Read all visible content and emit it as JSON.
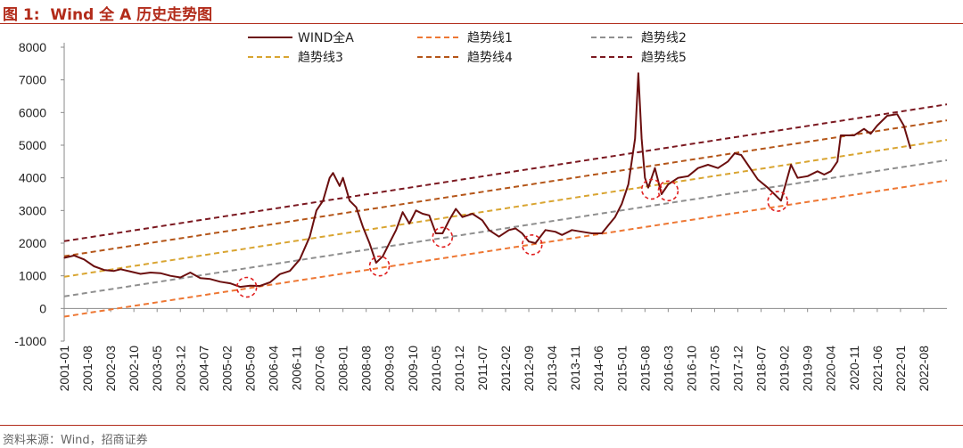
{
  "figure_label": "图 1:",
  "figure_title": "Wind 全 A 历史走势图",
  "source_text": "资料来源：Wind，招商证券",
  "chart_data": {
    "type": "line",
    "title": "Wind 全 A 历史走势图",
    "xlabel": "",
    "ylabel": "",
    "ylim": [
      -1000,
      8000
    ],
    "y_ticks": [
      -1000,
      0,
      1000,
      2000,
      3000,
      4000,
      5000,
      6000,
      7000,
      8000
    ],
    "x_ticks": [
      "2001-01",
      "2001-08",
      "2002-03",
      "2002-10",
      "2003-05",
      "2003-12",
      "2004-07",
      "2005-02",
      "2005-09",
      "2006-04",
      "2006-11",
      "2007-06",
      "2008-01",
      "2008-08",
      "2009-03",
      "2009-10",
      "2010-05",
      "2010-12",
      "2011-07",
      "2012-02",
      "2012-09",
      "2013-04",
      "2013-11",
      "2014-06",
      "2015-01",
      "2015-08",
      "2016-03",
      "2016-10",
      "2017-05",
      "2017-12",
      "2018-07",
      "2019-02",
      "2019-09",
      "2020-04",
      "2020-11",
      "2021-06",
      "2022-01",
      "2022-08"
    ],
    "legend_position": "top",
    "grid": false,
    "series": [
      {
        "name": "WIND全A",
        "color": "#6b0f0f",
        "style": "solid",
        "points": [
          [
            "2001-01",
            1550
          ],
          [
            "2001-04",
            1620
          ],
          [
            "2001-07",
            1500
          ],
          [
            "2001-10",
            1290
          ],
          [
            "2002-01",
            1180
          ],
          [
            "2002-04",
            1150
          ],
          [
            "2002-06",
            1200
          ],
          [
            "2002-09",
            1130
          ],
          [
            "2002-12",
            1060
          ],
          [
            "2003-03",
            1100
          ],
          [
            "2003-06",
            1080
          ],
          [
            "2003-09",
            1000
          ],
          [
            "2003-12",
            950
          ],
          [
            "2004-03",
            1100
          ],
          [
            "2004-06",
            930
          ],
          [
            "2004-09",
            900
          ],
          [
            "2004-12",
            820
          ],
          [
            "2005-03",
            770
          ],
          [
            "2005-06",
            660
          ],
          [
            "2005-09",
            700
          ],
          [
            "2005-12",
            690
          ],
          [
            "2006-03",
            800
          ],
          [
            "2006-06",
            1050
          ],
          [
            "2006-09",
            1150
          ],
          [
            "2006-12",
            1500
          ],
          [
            "2007-03",
            2200
          ],
          [
            "2007-05",
            3000
          ],
          [
            "2007-07",
            3300
          ],
          [
            "2007-09",
            4000
          ],
          [
            "2007-10",
            4150
          ],
          [
            "2007-12",
            3750
          ],
          [
            "2008-01",
            4000
          ],
          [
            "2008-03",
            3300
          ],
          [
            "2008-05",
            3100
          ],
          [
            "2008-07",
            2500
          ],
          [
            "2008-09",
            2000
          ],
          [
            "2008-11",
            1400
          ],
          [
            "2009-01",
            1600
          ],
          [
            "2009-03",
            2000
          ],
          [
            "2009-05",
            2400
          ],
          [
            "2009-07",
            2950
          ],
          [
            "2009-09",
            2600
          ],
          [
            "2009-11",
            3000
          ],
          [
            "2010-01",
            2900
          ],
          [
            "2010-03",
            2850
          ],
          [
            "2010-05",
            2300
          ],
          [
            "2010-07",
            2300
          ],
          [
            "2010-09",
            2700
          ],
          [
            "2010-11",
            3050
          ],
          [
            "2011-01",
            2800
          ],
          [
            "2011-04",
            2900
          ],
          [
            "2011-07",
            2700
          ],
          [
            "2011-09",
            2400
          ],
          [
            "2011-12",
            2200
          ],
          [
            "2012-03",
            2400
          ],
          [
            "2012-05",
            2450
          ],
          [
            "2012-07",
            2300
          ],
          [
            "2012-09",
            2050
          ],
          [
            "2012-11",
            2000
          ],
          [
            "2013-02",
            2400
          ],
          [
            "2013-05",
            2350
          ],
          [
            "2013-07",
            2250
          ],
          [
            "2013-10",
            2400
          ],
          [
            "2014-01",
            2350
          ],
          [
            "2014-04",
            2300
          ],
          [
            "2014-07",
            2300
          ],
          [
            "2014-09",
            2550
          ],
          [
            "2014-11",
            2800
          ],
          [
            "2015-01",
            3200
          ],
          [
            "2015-03",
            3800
          ],
          [
            "2015-05",
            5200
          ],
          [
            "2015-06",
            7200
          ],
          [
            "2015-07",
            5200
          ],
          [
            "2015-08",
            4000
          ],
          [
            "2015-09",
            3700
          ],
          [
            "2015-11",
            4300
          ],
          [
            "2016-01",
            3500
          ],
          [
            "2016-03",
            3800
          ],
          [
            "2016-06",
            4000
          ],
          [
            "2016-09",
            4050
          ],
          [
            "2016-12",
            4300
          ],
          [
            "2017-03",
            4400
          ],
          [
            "2017-06",
            4300
          ],
          [
            "2017-09",
            4500
          ],
          [
            "2017-11",
            4750
          ],
          [
            "2018-01",
            4700
          ],
          [
            "2018-03",
            4400
          ],
          [
            "2018-06",
            3950
          ],
          [
            "2018-09",
            3700
          ],
          [
            "2018-11",
            3500
          ],
          [
            "2019-01",
            3300
          ],
          [
            "2019-04",
            4400
          ],
          [
            "2019-06",
            4000
          ],
          [
            "2019-09",
            4050
          ],
          [
            "2019-12",
            4200
          ],
          [
            "2020-02",
            4100
          ],
          [
            "2020-04",
            4200
          ],
          [
            "2020-06",
            4500
          ],
          [
            "2020-07",
            5300
          ],
          [
            "2020-09",
            5300
          ],
          [
            "2020-11",
            5300
          ],
          [
            "2021-02",
            5500
          ],
          [
            "2021-04",
            5350
          ],
          [
            "2021-06",
            5600
          ],
          [
            "2021-09",
            5900
          ],
          [
            "2021-12",
            5950
          ],
          [
            "2022-02",
            5600
          ],
          [
            "2022-04",
            4900
          ]
        ]
      },
      {
        "name": "趋势线1",
        "color": "#ee7733",
        "style": "dashed",
        "start": [
          "2001-01",
          -250
        ],
        "end": [
          "2023-03",
          3920
        ]
      },
      {
        "name": "趋势线2",
        "color": "#8f8f8f",
        "style": "dashed",
        "start": [
          "2001-01",
          370
        ],
        "end": [
          "2023-03",
          4540
        ]
      },
      {
        "name": "趋势线3",
        "color": "#d9a531",
        "style": "dashed",
        "start": [
          "2001-01",
          970
        ],
        "end": [
          "2023-03",
          5160
        ]
      },
      {
        "name": "趋势线4",
        "color": "#b45518",
        "style": "dashed",
        "start": [
          "2001-01",
          1600
        ],
        "end": [
          "2023-03",
          5760
        ]
      },
      {
        "name": "趋势线5",
        "color": "#7b1820",
        "style": "dashed",
        "start": [
          "2001-01",
          2060
        ],
        "end": [
          "2023-03",
          6250
        ]
      }
    ],
    "annotations": [
      {
        "type": "circle",
        "color": "#e02020",
        "x": "2005-08",
        "y": 650
      },
      {
        "type": "circle",
        "color": "#e02020",
        "x": "2008-12",
        "y": 1300
      },
      {
        "type": "circle",
        "color": "#e02020",
        "x": "2010-07",
        "y": 2180
      },
      {
        "type": "circle",
        "color": "#e02020",
        "x": "2012-10",
        "y": 1950
      },
      {
        "type": "circle",
        "color": "#e02020",
        "x": "2015-10",
        "y": 3650
      },
      {
        "type": "circle",
        "color": "#e02020",
        "x": "2016-03",
        "y": 3600
      },
      {
        "type": "circle",
        "color": "#e02020",
        "x": "2018-12",
        "y": 3280
      }
    ]
  }
}
